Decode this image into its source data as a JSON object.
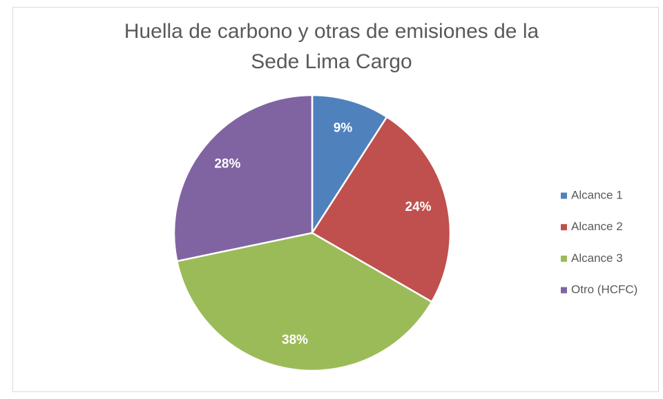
{
  "chart_data": {
    "type": "pie",
    "title": "Huella de carbono y otras de emisiones de la Sede Lima Cargo",
    "categories": [
      "Alcance 1",
      "Alcance 2",
      "Alcance 3",
      "Otro (HCFC)"
    ],
    "values": [
      9,
      24,
      38,
      28
    ],
    "value_labels": [
      "9%",
      "24%",
      "38%",
      "28%"
    ],
    "colors": [
      "#4f81bd",
      "#c0504d",
      "#9bbb59",
      "#8064a2"
    ],
    "legend": "right"
  }
}
